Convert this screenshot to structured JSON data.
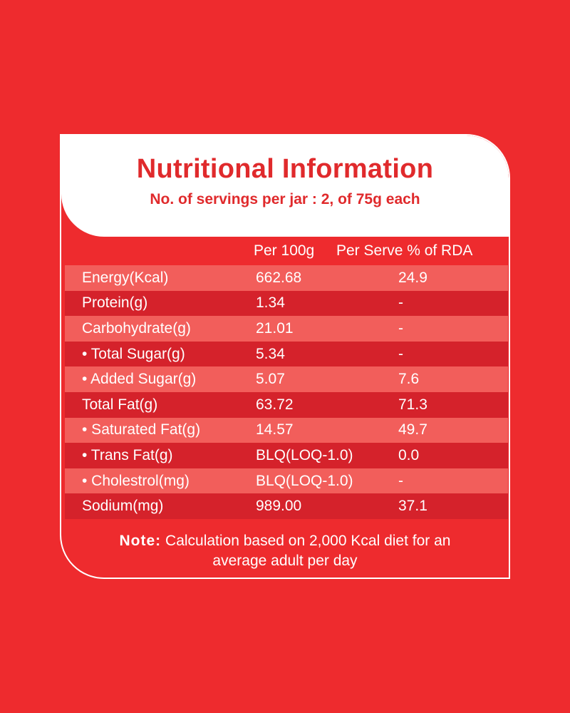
{
  "title": "Nutritional Information",
  "subtitle": "No. of servings per jar : 2, of 75g each",
  "columns": {
    "per100": "Per 100g",
    "rda": "Per Serve % of RDA"
  },
  "rows": [
    {
      "nutrient": "Energy(Kcal)",
      "per100": "662.68",
      "rda": "24.9"
    },
    {
      "nutrient": "Protein(g)",
      "per100": "1.34",
      "rda": "-"
    },
    {
      "nutrient": "Carbohydrate(g)",
      "per100": "21.01",
      "rda": "-"
    },
    {
      "nutrient": "• Total Sugar(g)",
      "per100": "5.34",
      "rda": "-"
    },
    {
      "nutrient": "• Added Sugar(g)",
      "per100": "5.07",
      "rda": "7.6"
    },
    {
      "nutrient": "Total Fat(g)",
      "per100": "63.72",
      "rda": "71.3"
    },
    {
      "nutrient": "• Saturated Fat(g)",
      "per100": "14.57",
      "rda": "49.7"
    },
    {
      "nutrient": "• Trans Fat(g)",
      "per100": "BLQ(LOQ-1.0)",
      "rda": "0.0"
    },
    {
      "nutrient": "• Cholestrol(mg)",
      "per100": "BLQ(LOQ-1.0)",
      "rda": "-"
    },
    {
      "nutrient": "Sodium(mg)",
      "per100": "989.00",
      "rda": "37.1"
    }
  ],
  "note": {
    "label": "Note:",
    "text": " Calculation based on 2,000 Kcal diet for an",
    "text2": "average adult per day"
  },
  "colors": {
    "background": "#ee2b2e",
    "accent_text": "#e02a2c",
    "row_light": "#f25e5b",
    "row_dark": "#d5222b"
  }
}
